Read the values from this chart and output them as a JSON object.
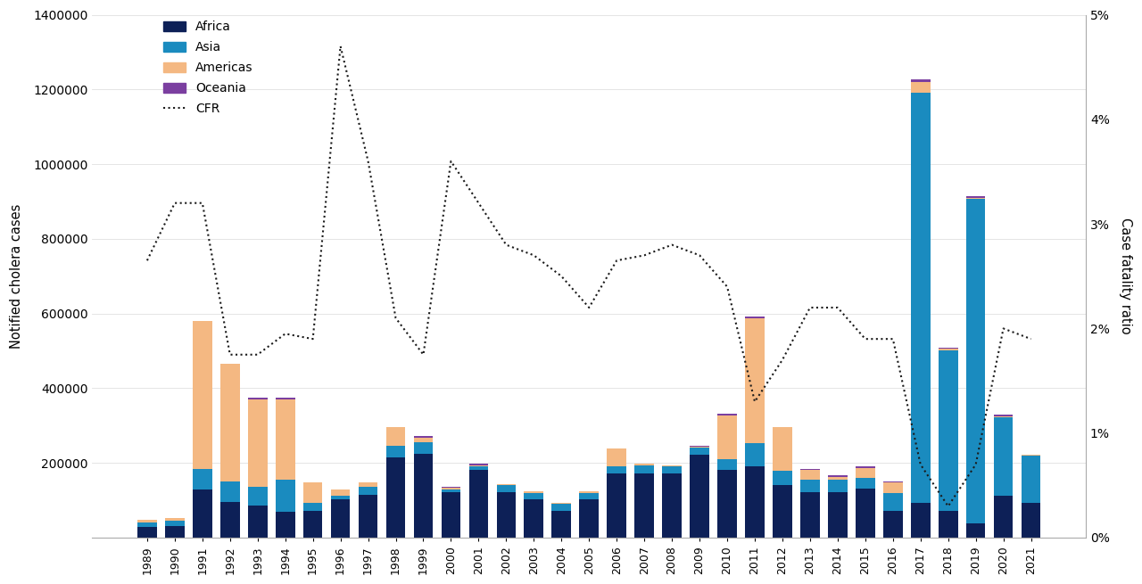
{
  "years": [
    1989,
    1990,
    1991,
    1992,
    1993,
    1994,
    1995,
    1996,
    1997,
    1998,
    1999,
    2000,
    2001,
    2002,
    2003,
    2004,
    2005,
    2006,
    2007,
    2008,
    2009,
    2010,
    2011,
    2012,
    2013,
    2014,
    2015,
    2016,
    2017,
    2018,
    2019,
    2020,
    2021
  ],
  "africa": [
    28000,
    30000,
    130000,
    95000,
    85000,
    70000,
    72000,
    103000,
    115000,
    215000,
    225000,
    122000,
    182000,
    122000,
    102000,
    72000,
    102000,
    172000,
    172000,
    172000,
    222000,
    182000,
    192000,
    142000,
    122000,
    122000,
    132000,
    72000,
    92000,
    72000,
    37000,
    112000,
    92000
  ],
  "asia": [
    12000,
    15000,
    55000,
    55000,
    50000,
    85000,
    22000,
    8000,
    22000,
    30000,
    30000,
    8000,
    8000,
    18000,
    18000,
    18000,
    18000,
    18000,
    22000,
    18000,
    18000,
    28000,
    60000,
    38000,
    32000,
    32000,
    28000,
    48000,
    1100000,
    430000,
    870000,
    210000,
    128000
  ],
  "americas": [
    8000,
    8000,
    395000,
    315000,
    235000,
    215000,
    55000,
    18000,
    12000,
    52000,
    12000,
    3000,
    3000,
    3000,
    3000,
    3000,
    3000,
    48000,
    3000,
    3000,
    3000,
    118000,
    335000,
    115000,
    27000,
    8000,
    27000,
    27000,
    27000,
    3000,
    3000,
    3000,
    3000
  ],
  "oceania": [
    0,
    0,
    0,
    0,
    4000,
    4000,
    0,
    0,
    0,
    0,
    4000,
    4000,
    4000,
    0,
    0,
    0,
    0,
    0,
    0,
    0,
    4000,
    4000,
    4000,
    0,
    4000,
    4000,
    4000,
    4000,
    8000,
    4000,
    4000,
    4000,
    0
  ],
  "cfr": [
    0.0265,
    0.032,
    0.032,
    0.0175,
    0.0175,
    0.0195,
    0.019,
    0.047,
    0.036,
    0.021,
    0.0175,
    0.036,
    0.032,
    0.028,
    0.027,
    0.025,
    0.022,
    0.0265,
    0.027,
    0.028,
    0.027,
    0.024,
    0.013,
    0.017,
    0.022,
    0.022,
    0.019,
    0.019,
    0.007,
    0.003,
    0.007,
    0.02,
    0.019
  ],
  "africa_color": "#0d2057",
  "asia_color": "#1a8bbf",
  "americas_color": "#f4b882",
  "oceania_color": "#7b3fa0",
  "cfr_color": "#1a1a1a",
  "ylabel_left": "Notified cholera cases",
  "ylabel_right": "Case fatality ratio",
  "ylim_left": [
    0,
    1400000
  ],
  "ylim_right": [
    0,
    0.05
  ],
  "yticks_left": [
    0,
    200000,
    400000,
    600000,
    800000,
    1000000,
    1200000,
    1400000
  ],
  "yticks_right": [
    0,
    0.01,
    0.02,
    0.03,
    0.04,
    0.05
  ],
  "bar_width": 0.7
}
